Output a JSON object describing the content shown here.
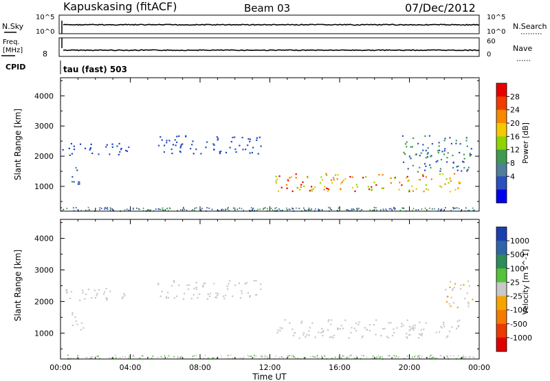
{
  "header": {
    "station": "Kapuskasing (fitACF)",
    "beam": "Beam 03",
    "date": "07/Dec/2012"
  },
  "noise_panel": {
    "left_label": "N.Sky",
    "right_label": "N.Search",
    "ticks_left": [
      "10^5",
      "10^0"
    ],
    "ticks_right": [
      "10^5",
      "10^0"
    ]
  },
  "freq_panel": {
    "left_label_1": "Freq.",
    "left_label_2": "[MHz]",
    "right_label": "Nave",
    "ticks_left": [
      "8"
    ],
    "ticks_right": [
      "60",
      "0"
    ]
  },
  "cpid_panel": {
    "label": "CPID",
    "mode": "tau (fast) 503"
  },
  "power_panel": {
    "ylabel": "Slant Range [km]",
    "yticks": [
      "4000",
      "3000",
      "2000",
      "1000"
    ],
    "colorbar_label": "Power [dB]",
    "colorbar_ticks": [
      "28",
      "24",
      "20",
      "16",
      "12",
      "8",
      "4"
    ],
    "colorbar_colors": [
      "#e60000",
      "#f03c00",
      "#f78800",
      "#f5c800",
      "#8fd400",
      "#3f9a4f",
      "#4f7f9a",
      "#2c4fbf",
      "#0000ee"
    ]
  },
  "velocity_panel": {
    "ylabel": "Slant Range [km]",
    "yticks": [
      "4000",
      "3000",
      "2000",
      "1000"
    ],
    "colorbar_label": "Velocity [m s^-1]",
    "colorbar_ticks": [
      "1000",
      "500",
      "100",
      "25",
      "-25",
      "-100",
      "-500",
      "-1000"
    ],
    "colorbar_colors": [
      "#1a3fb0",
      "#3064a8",
      "#2c8c5a",
      "#55c23a",
      "#c8c8c8",
      "#f6a500",
      "#f57a00",
      "#ea3a00",
      "#e00000"
    ]
  },
  "x_axis": {
    "label": "Time UT",
    "ticks": [
      "00:00",
      "04:00",
      "08:00",
      "12:00",
      "16:00",
      "20:00",
      "00:00"
    ]
  },
  "chart_data": {
    "type": "heatmap",
    "title": "Kapuskasing (fitACF)  Beam 03  07/Dec/2012",
    "xlabel": "Time UT",
    "ylabel": "Slant Range [km]",
    "xlim_hours": [
      0,
      24
    ],
    "ylim_km": [
      180,
      4600
    ],
    "series": [
      {
        "name": "Power [dB]",
        "echo_regions": [
          {
            "t_start": 0.5,
            "t_end": 1.3,
            "range_low_km": 1100,
            "range_high_km": 1700,
            "power_db": 8
          },
          {
            "t_start": 0.0,
            "t_end": 4.0,
            "range_low_km": 2050,
            "range_high_km": 2450,
            "power_db": 4
          },
          {
            "t_start": 5.5,
            "t_end": 11.5,
            "range_low_km": 2100,
            "range_high_km": 2700,
            "power_db": 5
          },
          {
            "t_start": 12.3,
            "t_end": 23.0,
            "range_low_km": 850,
            "range_high_km": 1450,
            "power_db": 20
          },
          {
            "t_start": 19.5,
            "t_end": 23.6,
            "range_low_km": 1500,
            "range_high_km": 2700,
            "power_db": 8
          }
        ]
      },
      {
        "name": "Velocity [m s^-1]",
        "echo_regions": [
          {
            "t_start": 0.5,
            "t_end": 1.3,
            "range_low_km": 1100,
            "range_high_km": 1700,
            "velocity": 0
          },
          {
            "t_start": 0.0,
            "t_end": 4.0,
            "range_low_km": 2050,
            "range_high_km": 2450,
            "velocity": 0
          },
          {
            "t_start": 5.5,
            "t_end": 11.5,
            "range_low_km": 2100,
            "range_high_km": 2700,
            "velocity": 0
          },
          {
            "t_start": 12.3,
            "t_end": 23.0,
            "range_low_km": 850,
            "range_high_km": 1450,
            "velocity": 0
          },
          {
            "t_start": 22.0,
            "t_end": 23.6,
            "range_low_km": 1800,
            "range_high_km": 2700,
            "velocity": -100
          }
        ]
      }
    ],
    "noise_sky": "~10^3 (flat)",
    "freq_mhz": 10,
    "nave": 30
  }
}
